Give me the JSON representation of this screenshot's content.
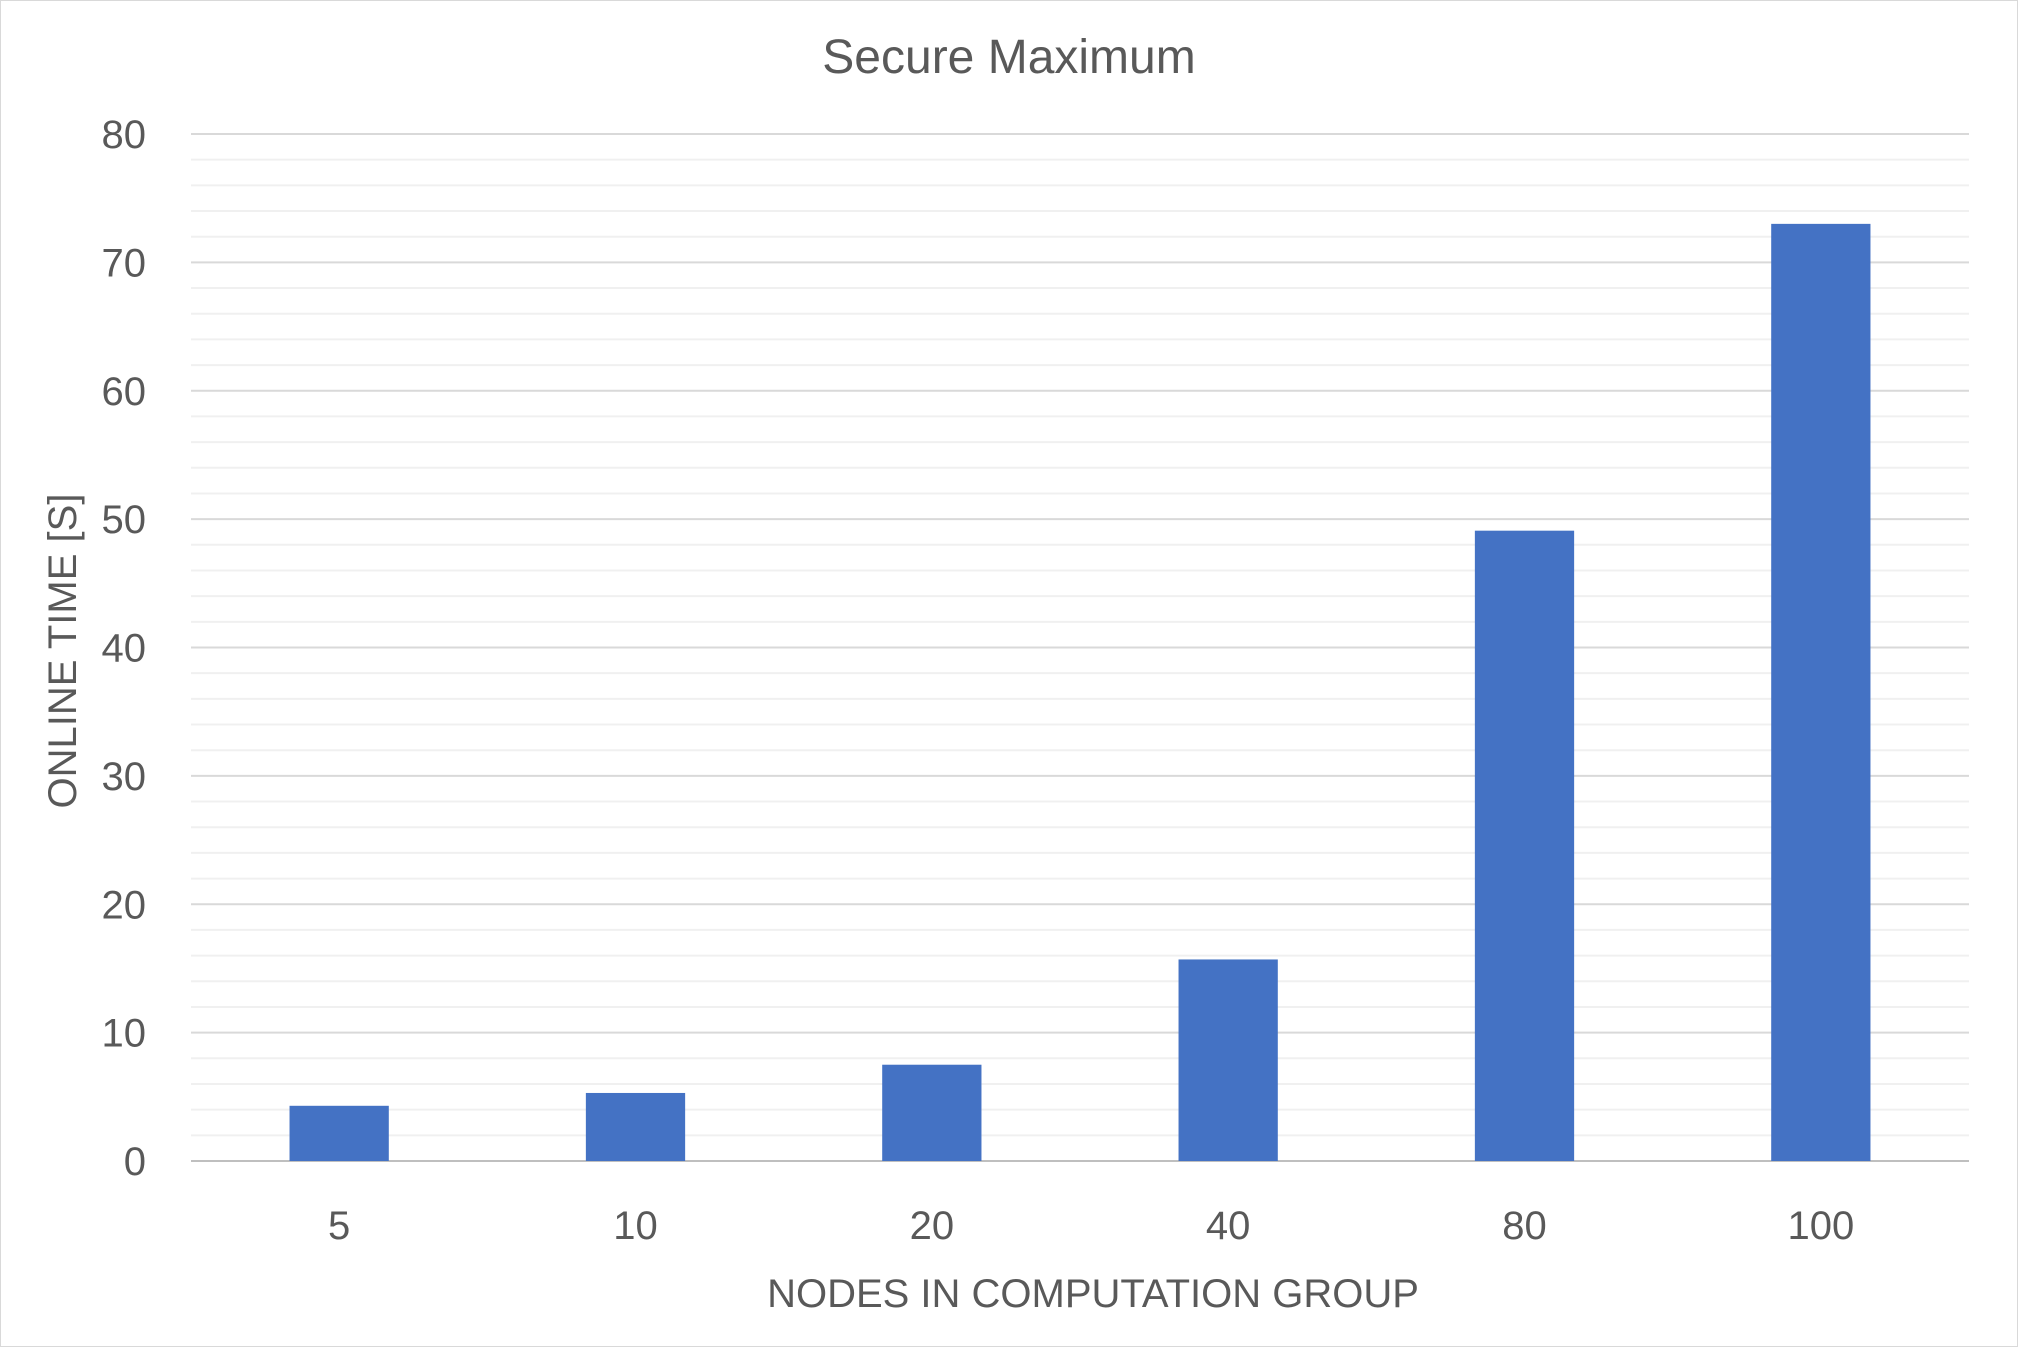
{
  "chart_data": {
    "type": "bar",
    "title": "Secure Maximum",
    "xlabel": "NODES IN COMPUTATION GROUP",
    "ylabel": "ONLINE TIME [S]",
    "categories": [
      "5",
      "10",
      "20",
      "40",
      "80",
      "100"
    ],
    "values": [
      4.3,
      5.3,
      7.5,
      15.7,
      49.1,
      73.0
    ],
    "ylim": [
      0,
      80
    ],
    "yticks": [
      "0",
      "10",
      "20",
      "30",
      "40",
      "50",
      "60",
      "70",
      "80"
    ],
    "grid": true,
    "legend": "none",
    "bar_color": "#4472C4"
  }
}
